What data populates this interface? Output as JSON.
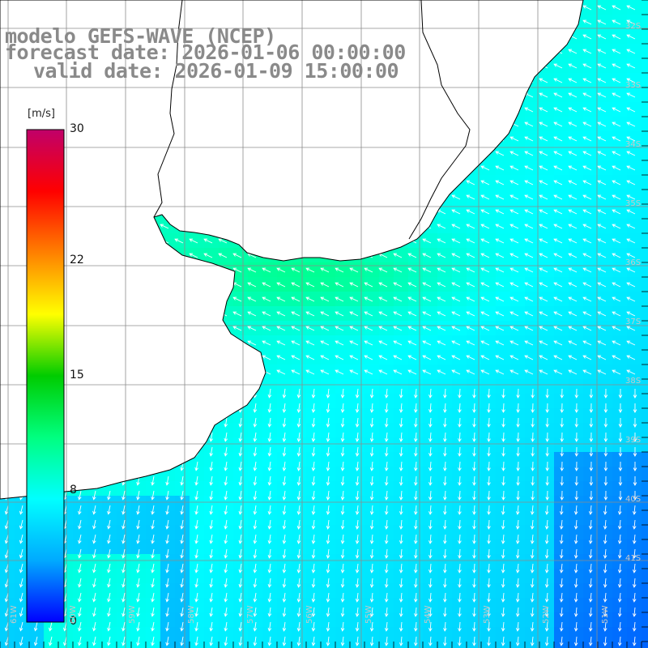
{
  "title": {
    "line1": "modelo GEFS-WAVE (NCEP)",
    "line2": "forecast date: 2026-01-06 00:00:00",
    "line3": "valid date: 2026-01-09 15:00:00"
  },
  "colorbar": {
    "unit": "[m/s]",
    "ticks": [
      "30",
      "22",
      "15",
      "8",
      "0"
    ],
    "tick_values": [
      30,
      22,
      15,
      8,
      0
    ],
    "min": 0,
    "max": 30,
    "colors": [
      "#0000ff",
      "#00aaff",
      "#00ffff",
      "#00ff80",
      "#00cc00",
      "#ffff00",
      "#ff8000",
      "#ff0000",
      "#c0006a"
    ]
  },
  "lat_labels": [
    "32S",
    "33S",
    "34S",
    "35S",
    "36S",
    "37S",
    "38S",
    "39S",
    "40S",
    "41S"
  ],
  "lon_labels": [
    "61W",
    "60W",
    "59W",
    "58W",
    "57W",
    "56W",
    "55W",
    "54W",
    "53W",
    "52W",
    "51W"
  ],
  "colors": {
    "land": "#ffffff",
    "grid": "#8c8c8c",
    "coast": "#000000",
    "arrows": "#ffffff",
    "title": "#8a8a8a"
  }
}
